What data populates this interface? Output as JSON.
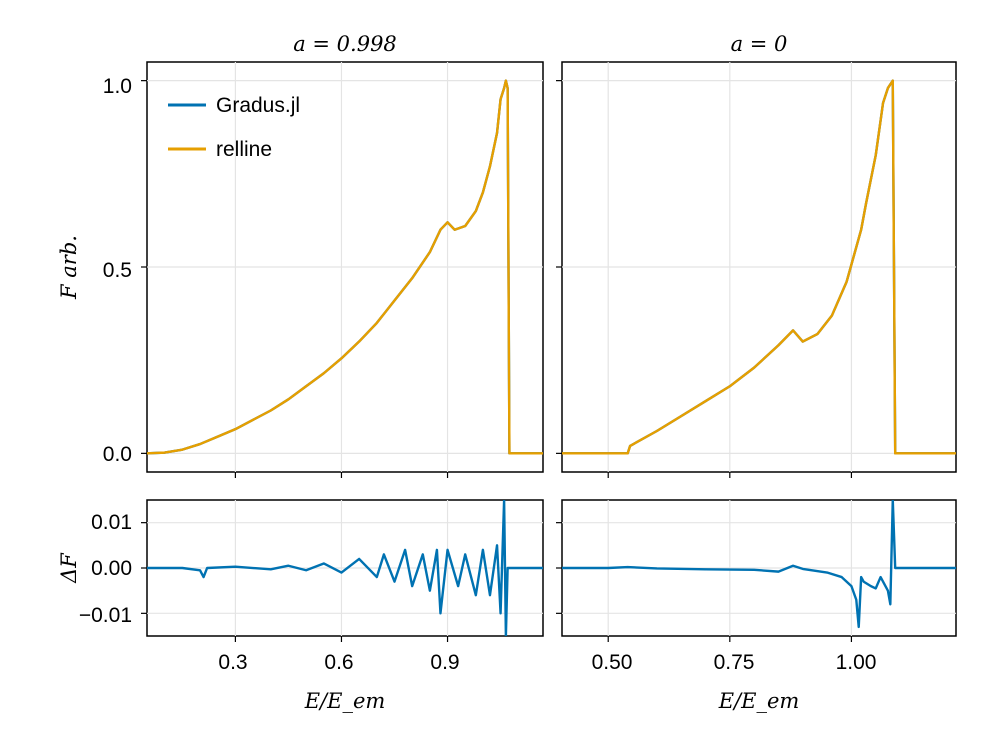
{
  "colors": {
    "gradus": "#0072b2",
    "relline": "#e69f00",
    "grid": "#e4e4e4",
    "frame": "#000000"
  },
  "legend": {
    "items": [
      {
        "label": "Gradus.jl",
        "color": "#0072b2"
      },
      {
        "label": "relline",
        "color": "#e69f00"
      }
    ]
  },
  "chart_data": [
    {
      "id": "left-top",
      "type": "line",
      "title": "a = 0.998",
      "xlim": [
        0.05,
        1.17
      ],
      "ylim": [
        -0.05,
        1.05
      ],
      "yticks": [
        0.0,
        0.5,
        1.0
      ],
      "yticklabels": [
        "0.0",
        "0.5",
        "1.0"
      ],
      "xticks": [
        0.3,
        0.6,
        0.9
      ],
      "ylabel": "F arb.",
      "series": [
        {
          "name": "Gradus.jl",
          "x": [
            0.05,
            0.1,
            0.15,
            0.2,
            0.25,
            0.3,
            0.35,
            0.4,
            0.45,
            0.5,
            0.55,
            0.6,
            0.65,
            0.7,
            0.75,
            0.8,
            0.85,
            0.88,
            0.9,
            0.92,
            0.95,
            0.98,
            1.0,
            1.02,
            1.04,
            1.05,
            1.06,
            1.065,
            1.07,
            1.075,
            1.17
          ],
          "y": [
            0.0,
            0.002,
            0.01,
            0.025,
            0.045,
            0.065,
            0.09,
            0.115,
            0.145,
            0.18,
            0.215,
            0.255,
            0.3,
            0.35,
            0.41,
            0.47,
            0.54,
            0.6,
            0.62,
            0.6,
            0.61,
            0.65,
            0.7,
            0.77,
            0.86,
            0.95,
            0.98,
            1.0,
            0.98,
            0.0,
            0.0
          ]
        },
        {
          "name": "relline",
          "x": [
            0.05,
            0.1,
            0.15,
            0.2,
            0.25,
            0.3,
            0.35,
            0.4,
            0.45,
            0.5,
            0.55,
            0.6,
            0.65,
            0.7,
            0.75,
            0.8,
            0.85,
            0.88,
            0.9,
            0.92,
            0.95,
            0.98,
            1.0,
            1.02,
            1.04,
            1.05,
            1.06,
            1.065,
            1.07,
            1.075,
            1.17
          ],
          "y": [
            0.0,
            0.002,
            0.01,
            0.025,
            0.045,
            0.065,
            0.09,
            0.115,
            0.145,
            0.18,
            0.215,
            0.255,
            0.3,
            0.35,
            0.41,
            0.47,
            0.54,
            0.6,
            0.62,
            0.6,
            0.61,
            0.65,
            0.7,
            0.77,
            0.86,
            0.95,
            0.98,
            1.0,
            0.98,
            0.0,
            0.0
          ]
        }
      ]
    },
    {
      "id": "right-top",
      "type": "line",
      "title": "a = 0",
      "xlim": [
        0.405,
        1.215
      ],
      "ylim": [
        -0.05,
        1.05
      ],
      "yticks": [
        0.0,
        0.5,
        1.0
      ],
      "xticks": [
        0.5,
        0.75,
        1.0
      ],
      "series": [
        {
          "name": "Gradus.jl",
          "x": [
            0.405,
            0.5,
            0.54,
            0.545,
            0.6,
            0.65,
            0.7,
            0.75,
            0.8,
            0.85,
            0.88,
            0.9,
            0.93,
            0.96,
            0.99,
            1.02,
            1.03,
            1.05,
            1.065,
            1.075,
            1.085,
            1.09,
            1.215
          ],
          "y": [
            0.0,
            0.0,
            0.0,
            0.02,
            0.06,
            0.1,
            0.14,
            0.18,
            0.23,
            0.29,
            0.33,
            0.3,
            0.32,
            0.37,
            0.46,
            0.6,
            0.67,
            0.8,
            0.94,
            0.98,
            1.0,
            0.0,
            0.0
          ]
        },
        {
          "name": "relline",
          "x": [
            0.405,
            0.5,
            0.54,
            0.545,
            0.6,
            0.65,
            0.7,
            0.75,
            0.8,
            0.85,
            0.88,
            0.9,
            0.93,
            0.96,
            0.99,
            1.02,
            1.03,
            1.05,
            1.065,
            1.075,
            1.085,
            1.09,
            1.215
          ],
          "y": [
            0.0,
            0.0,
            0.0,
            0.02,
            0.06,
            0.1,
            0.14,
            0.18,
            0.23,
            0.29,
            0.33,
            0.3,
            0.32,
            0.37,
            0.46,
            0.6,
            0.67,
            0.8,
            0.94,
            0.98,
            1.0,
            0.0,
            0.0
          ]
        }
      ]
    },
    {
      "id": "left-bottom",
      "type": "line",
      "xlim": [
        0.05,
        1.17
      ],
      "ylim": [
        -0.015,
        0.015
      ],
      "yticks": [
        -0.01,
        0.0,
        0.01
      ],
      "yticklabels": [
        "−0.01",
        "0.00",
        "0.01"
      ],
      "xticks": [
        0.3,
        0.6,
        0.9
      ],
      "xticklabels": [
        "0.3",
        "0.6",
        "0.9"
      ],
      "xlabel": "E/E_em",
      "ylabel": "ΔF",
      "series": [
        {
          "name": "Gradus.jl",
          "x": [
            0.05,
            0.15,
            0.2,
            0.21,
            0.22,
            0.3,
            0.4,
            0.45,
            0.5,
            0.55,
            0.6,
            0.65,
            0.7,
            0.72,
            0.75,
            0.78,
            0.8,
            0.83,
            0.85,
            0.87,
            0.88,
            0.9,
            0.93,
            0.95,
            0.98,
            1.0,
            1.02,
            1.04,
            1.05,
            1.06,
            1.065,
            1.07,
            1.08,
            1.17
          ],
          "y": [
            0.0,
            0.0,
            -0.0005,
            -0.002,
            0.0,
            0.0003,
            -0.0003,
            0.0005,
            -0.0005,
            0.001,
            -0.001,
            0.002,
            -0.002,
            0.003,
            -0.003,
            0.004,
            -0.004,
            0.003,
            -0.005,
            0.004,
            -0.01,
            0.004,
            -0.004,
            0.003,
            -0.006,
            0.004,
            -0.006,
            0.005,
            -0.01,
            0.015,
            -0.015,
            0.0,
            0.0,
            0.0
          ]
        }
      ]
    },
    {
      "id": "right-bottom",
      "type": "line",
      "xlim": [
        0.405,
        1.215
      ],
      "ylim": [
        -0.015,
        0.015
      ],
      "yticks": [
        -0.01,
        0.0,
        0.01
      ],
      "xticks": [
        0.5,
        0.75,
        1.0
      ],
      "xticklabels": [
        "0.50",
        "0.75",
        "1.00"
      ],
      "xlabel": "E/E_em",
      "series": [
        {
          "name": "Gradus.jl",
          "x": [
            0.405,
            0.5,
            0.54,
            0.6,
            0.7,
            0.8,
            0.85,
            0.88,
            0.9,
            0.95,
            0.98,
            1.0,
            1.01,
            1.015,
            1.02,
            1.025,
            1.04,
            1.05,
            1.06,
            1.075,
            1.08,
            1.085,
            1.09,
            1.215
          ],
          "y": [
            0.0,
            0.0,
            0.0002,
            -0.0001,
            -0.0003,
            -0.0004,
            -0.0008,
            0.0005,
            -0.0002,
            -0.001,
            -0.002,
            -0.004,
            -0.007,
            -0.013,
            -0.002,
            -0.003,
            -0.004,
            -0.0045,
            -0.002,
            -0.005,
            -0.008,
            0.015,
            0.0,
            0.0
          ]
        }
      ]
    }
  ]
}
